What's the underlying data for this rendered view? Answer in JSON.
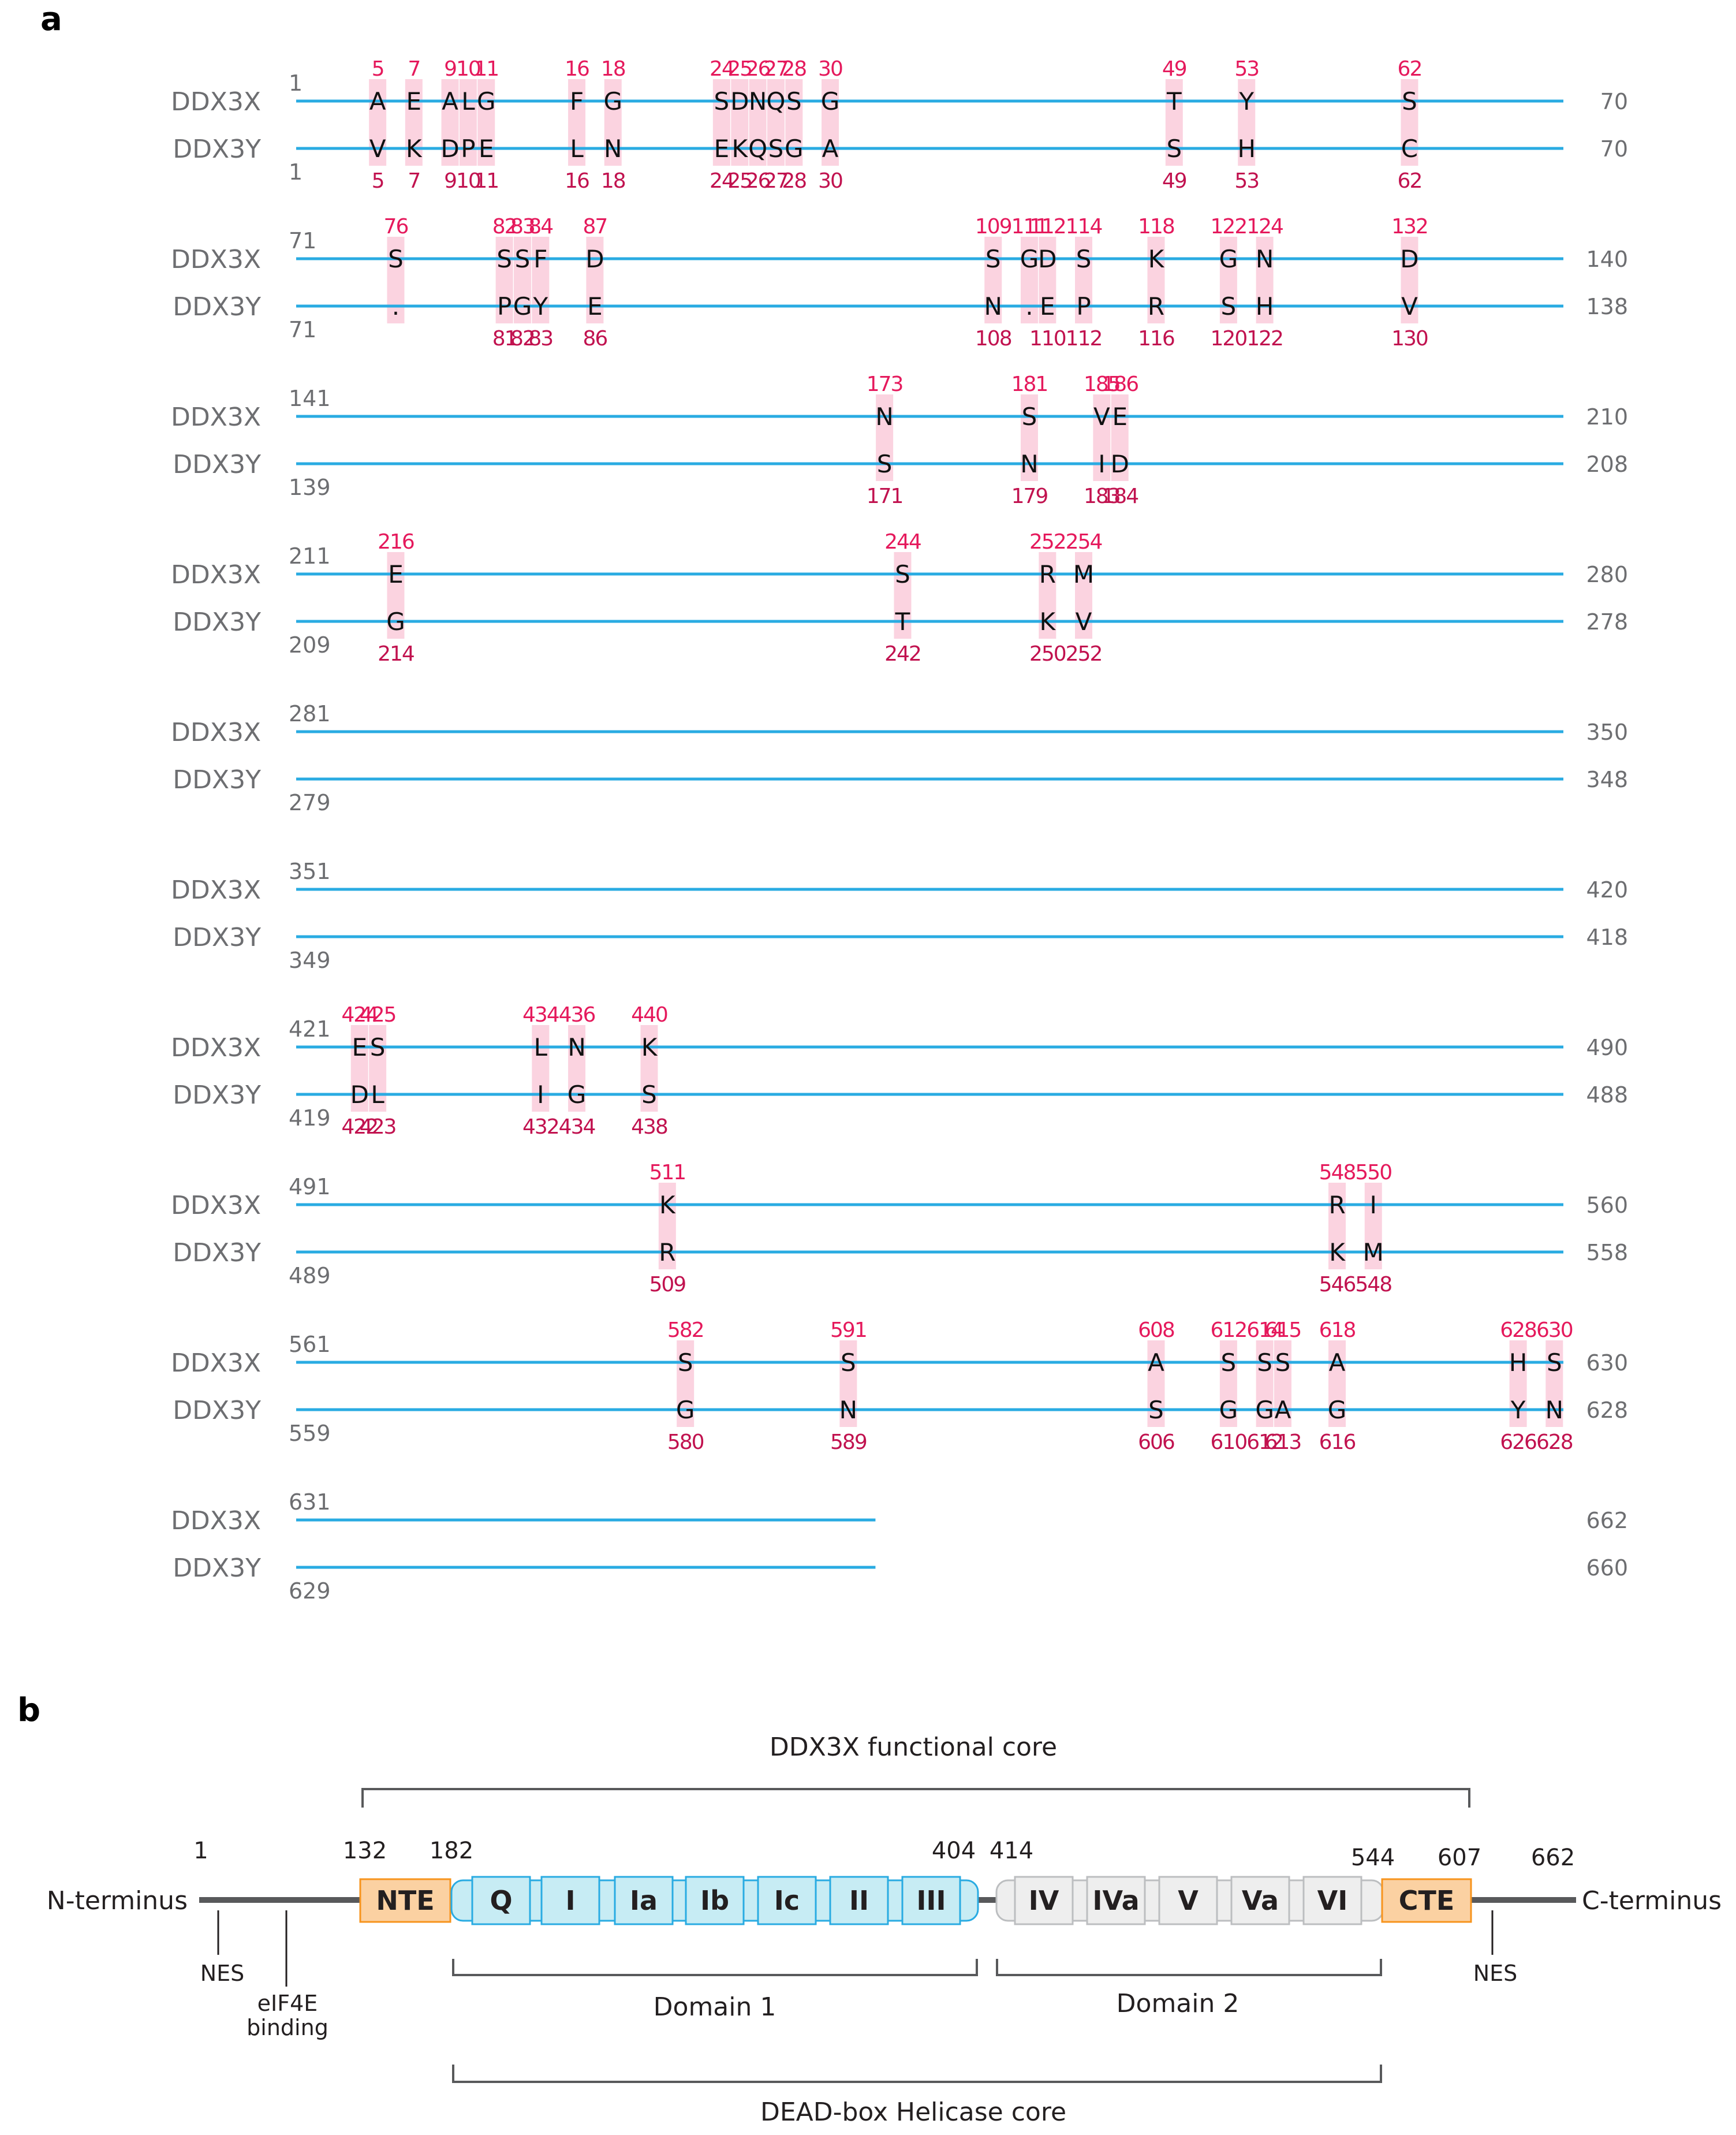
{
  "panel_a": {
    "letter": "a",
    "label_x": "DDX3X",
    "label_y": "DDX3Y",
    "colors": {
      "line": "#29abe2",
      "highlight": "#fbd3e0",
      "num_x": "#e5195c",
      "num_y": "#c1124f",
      "label": "#6d6e71"
    },
    "rows": [
      {
        "x_start": "1",
        "x_end": "70",
        "y_start": "1",
        "y_end": "70",
        "y_start_below": false,
        "muts": [
          [
            "5",
            "A",
            "V",
            "5"
          ],
          [
            "7",
            "E",
            "K",
            "7"
          ],
          [
            "9",
            "A",
            "D",
            "9"
          ],
          [
            "10",
            "L",
            "P",
            "10"
          ],
          [
            "11",
            "G",
            "E",
            "11"
          ],
          [
            "16",
            "F",
            "L",
            "16"
          ],
          [
            "18",
            "G",
            "N",
            "18"
          ],
          [
            "24",
            "S",
            "E",
            "24"
          ],
          [
            "25",
            "D",
            "K",
            "25"
          ],
          [
            "26",
            "N",
            "Q",
            "26"
          ],
          [
            "27",
            "Q",
            "S",
            "27"
          ],
          [
            "28",
            "S",
            "G",
            "28"
          ],
          [
            "30",
            "G",
            "A",
            "30"
          ],
          [
            "49",
            "T",
            "S",
            "49"
          ],
          [
            "53",
            "Y",
            "H",
            "53"
          ],
          [
            "62",
            "S",
            "C",
            "62"
          ]
        ]
      },
      {
        "x_start": "71",
        "x_end": "140",
        "y_start": "71",
        "y_end": "138",
        "y_start_below": true,
        "muts": [
          [
            "76",
            "S",
            ".",
            ""
          ],
          [
            "82",
            "S",
            "P",
            "81"
          ],
          [
            "83",
            "S",
            "G",
            "82"
          ],
          [
            "84",
            "F",
            "Y",
            "83"
          ],
          [
            "87",
            "D",
            "E",
            "86"
          ],
          [
            "109",
            "S",
            "N",
            "108"
          ],
          [
            "111",
            "G",
            ".",
            ""
          ],
          [
            "112",
            "D",
            "E",
            "110"
          ],
          [
            "114",
            "S",
            "P",
            "112"
          ],
          [
            "118",
            "K",
            "R",
            "116"
          ],
          [
            "122",
            "G",
            "S",
            "120"
          ],
          [
            "124",
            "N",
            "H",
            "122"
          ],
          [
            "132",
            "D",
            "V",
            "130"
          ]
        ]
      },
      {
        "x_start": "141",
        "x_end": "210",
        "y_start": "139",
        "y_end": "208",
        "y_start_below": true,
        "muts": [
          [
            "173",
            "N",
            "S",
            "171"
          ],
          [
            "181",
            "S",
            "N",
            "179"
          ],
          [
            "185",
            "V",
            "I",
            "183"
          ],
          [
            "186",
            "E",
            "D",
            "184"
          ]
        ]
      },
      {
        "x_start": "211",
        "x_end": "280",
        "y_start": "209",
        "y_end": "278",
        "y_start_below": true,
        "muts": [
          [
            "216",
            "E",
            "G",
            "214"
          ],
          [
            "244",
            "S",
            "T",
            "242"
          ],
          [
            "252",
            "R",
            "K",
            "250"
          ],
          [
            "254",
            "M",
            "V",
            "252"
          ]
        ]
      },
      {
        "x_start": "281",
        "x_end": "350",
        "y_start": "279",
        "y_end": "348",
        "y_start_below": true,
        "muts": []
      },
      {
        "x_start": "351",
        "x_end": "420",
        "y_start": "349",
        "y_end": "418",
        "y_start_below": true,
        "muts": []
      },
      {
        "x_start": "421",
        "x_end": "490",
        "y_start": "419",
        "y_end": "488",
        "y_start_below": true,
        "muts": [
          [
            "424",
            "E",
            "D",
            "422"
          ],
          [
            "425",
            "S",
            "L",
            "423"
          ],
          [
            "434",
            "L",
            "I",
            "432"
          ],
          [
            "436",
            "N",
            "G",
            "434"
          ],
          [
            "440",
            "K",
            "S",
            "438"
          ]
        ]
      },
      {
        "x_start": "491",
        "x_end": "560",
        "y_start": "489",
        "y_end": "558",
        "y_start_below": true,
        "muts": [
          [
            "511",
            "K",
            "R",
            "509"
          ],
          [
            "548",
            "R",
            "K",
            "546"
          ],
          [
            "550",
            "I",
            "M",
            "548"
          ]
        ]
      },
      {
        "x_start": "561",
        "x_end": "630",
        "y_start": "559",
        "y_end": "628",
        "y_start_below": true,
        "muts": [
          [
            "582",
            "S",
            "G",
            "580"
          ],
          [
            "591",
            "S",
            "N",
            "589"
          ],
          [
            "608",
            "A",
            "S",
            "606"
          ],
          [
            "612",
            "S",
            "G",
            "610"
          ],
          [
            "614",
            "S",
            "G",
            "612"
          ],
          [
            "615",
            "S",
            "A",
            "613"
          ],
          [
            "618",
            "A",
            "G",
            "616"
          ],
          [
            "628",
            "H",
            "Y",
            "626"
          ],
          [
            "630",
            "S",
            "N",
            "628"
          ]
        ]
      },
      {
        "x_start": "631",
        "x_end": "662",
        "y_start": "629",
        "y_end": "660",
        "y_start_below": true,
        "muts": []
      }
    ]
  },
  "panel_b": {
    "letter": "b",
    "functional_core_label": "DDX3X functional core",
    "helicase_core_label": "DEAD-box Helicase core",
    "domain1_label": "Domain 1",
    "domain2_label": "Domain 2",
    "n_terminus": "N-terminus",
    "c_terminus": "C-terminus",
    "nes_left": "NES",
    "nes_right": "NES",
    "eif4e_line1": "eIF4E",
    "eif4e_line2": "binding",
    "positions": [
      "1",
      "132",
      "182",
      "404",
      "414",
      "544",
      "607",
      "662"
    ],
    "nte": "NTE",
    "cte": "CTE",
    "domain1_motifs": [
      "Q",
      "I",
      "Ia",
      "Ib",
      "Ic",
      "II",
      "III"
    ],
    "domain2_motifs": [
      "IV",
      "IVa",
      "V",
      "Va",
      "VI"
    ],
    "colors": {
      "terminal_fill": "#fbd1a2",
      "terminal_stroke": "#f7941d",
      "d1_fill": "#c7ecf4",
      "d1_stroke": "#29abe2",
      "d2_fill": "#eeeeee",
      "d2_stroke": "#bcbec0",
      "backbone": "#58595b"
    }
  }
}
